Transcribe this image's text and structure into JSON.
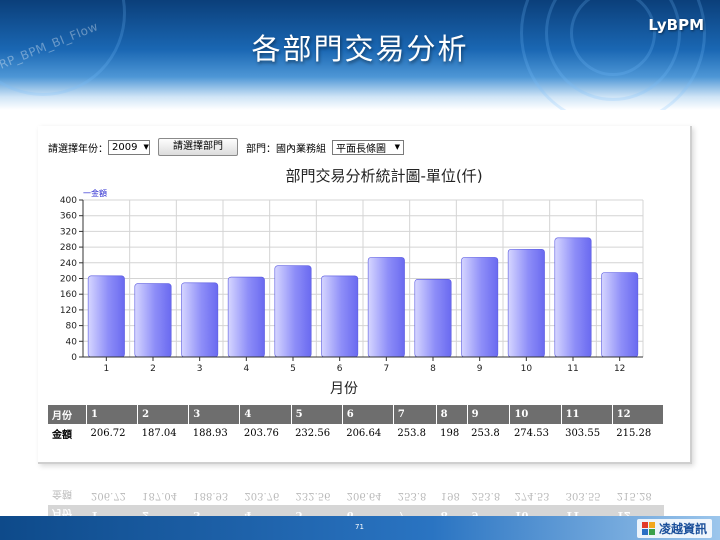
{
  "slide": {
    "title": "各部門交易分析",
    "brand": "LyBPM",
    "watermark": "ERP_BPM_BI_Flow",
    "page_number": "71",
    "logo_text": "凌越資訊"
  },
  "controls": {
    "year_label": "請選擇年份：",
    "year_value": "2009",
    "dept_button": "請選擇部門",
    "dept_label": "部門：國內業務組",
    "chart_type_value": "平面長條圖"
  },
  "colors": {
    "bar_light": "#d6d6ff",
    "bar_dark": "#6a6af0",
    "table_header": "#6e6e6e"
  },
  "chart_data": {
    "type": "bar",
    "title": "部門交易分析統計圖-單位(仟)",
    "xlabel": "月份",
    "ylabel": "",
    "legend": [
      "一金額"
    ],
    "legend_position": "top-left",
    "grid": true,
    "ylim": [
      0,
      400
    ],
    "yticks": [
      0,
      40,
      80,
      120,
      160,
      200,
      240,
      280,
      320,
      360,
      400
    ],
    "categories": [
      "1",
      "2",
      "3",
      "4",
      "5",
      "6",
      "7",
      "8",
      "9",
      "10",
      "11",
      "12"
    ],
    "series": [
      {
        "name": "金額",
        "values": [
          206.72,
          187.04,
          188.93,
          203.76,
          232.56,
          206.64,
          253.8,
          198,
          253.8,
          274.53,
          303.55,
          215.28
        ]
      }
    ]
  },
  "table": {
    "header_label": "月份",
    "row_label": "金額",
    "months": [
      "1",
      "2",
      "3",
      "4",
      "5",
      "6",
      "7",
      "8",
      "9",
      "10",
      "11",
      "12"
    ],
    "values": [
      "206.72",
      "187.04",
      "188.93",
      "203.76",
      "232.56",
      "206.64",
      "253.8",
      "198",
      "253.8",
      "274.53",
      "303.55",
      "215.28"
    ]
  }
}
